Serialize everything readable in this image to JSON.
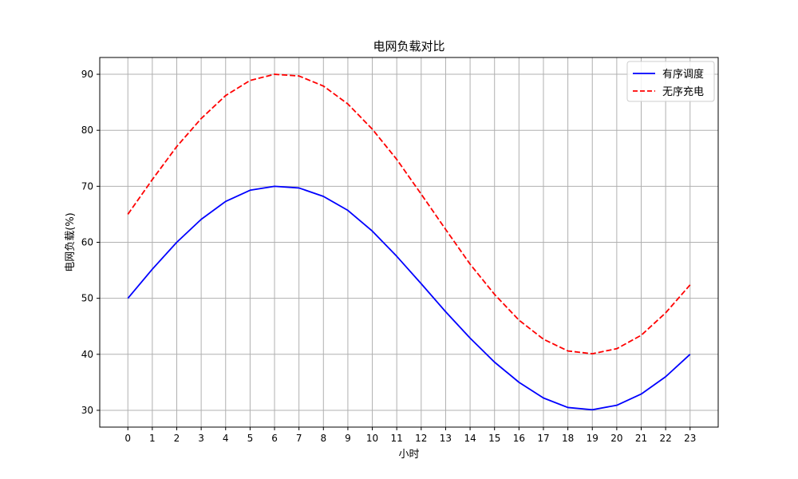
{
  "chart_data": {
    "type": "line",
    "title": "电网负载对比",
    "xlabel": "小时",
    "ylabel": "电网负载(%)",
    "x": [
      0,
      1,
      2,
      3,
      4,
      5,
      6,
      7,
      8,
      9,
      10,
      11,
      12,
      13,
      14,
      15,
      16,
      17,
      18,
      19,
      20,
      21,
      22,
      23
    ],
    "xlim": [
      -1.15,
      24.15
    ],
    "ylim": [
      27,
      93
    ],
    "yticks": [
      30,
      40,
      50,
      60,
      70,
      80,
      90
    ],
    "grid": true,
    "legend_position": "top-right",
    "series": [
      {
        "name": "有序调度",
        "color": "#0000ff",
        "style": "solid",
        "values": [
          50.0,
          55.2,
          60.0,
          64.1,
          67.3,
          69.3,
          70.0,
          69.7,
          68.2,
          65.7,
          62.0,
          57.5,
          52.6,
          47.6,
          42.9,
          38.6,
          35.0,
          32.2,
          30.5,
          30.1,
          30.9,
          32.9,
          36.0,
          40.0
        ]
      },
      {
        "name": "无序充电",
        "color": "#ff0000",
        "style": "dashed",
        "values": [
          65.0,
          71.2,
          77.1,
          82.1,
          86.2,
          88.9,
          90.0,
          89.7,
          87.9,
          84.7,
          80.2,
          74.8,
          68.6,
          62.3,
          56.1,
          50.7,
          46.1,
          42.7,
          40.6,
          40.1,
          41.0,
          43.4,
          47.4,
          52.4
        ]
      }
    ]
  }
}
